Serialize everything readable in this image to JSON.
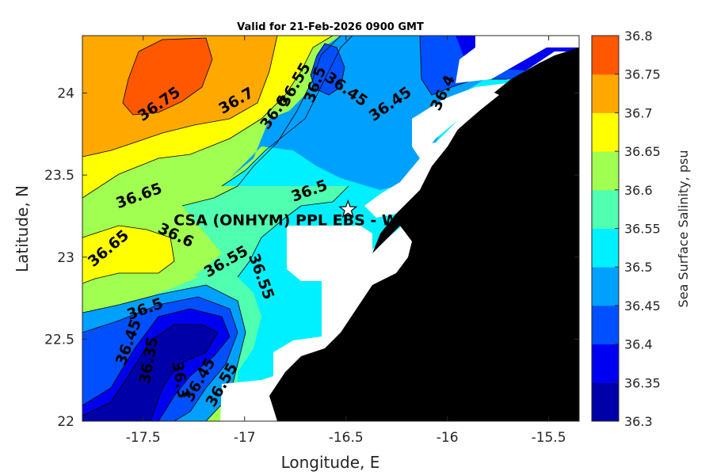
{
  "title": "Valid for 21-Feb-2026 0900 GMT",
  "xlabel": "Longitude, E",
  "ylabel": "Latitude, N",
  "colorbar_label": "Sea Surface Salinity, psu",
  "site_label": "CSA (ONHYM) PPL EBS  - We",
  "colors": {
    "land": "#000000",
    "nodata": "#ffffff",
    "levels": [
      "#0000a8",
      "#0000f0",
      "#0050ff",
      "#00a0ff",
      "#00f0ff",
      "#50ffb0",
      "#a0ff50",
      "#ffff00",
      "#ffa800",
      "#ff5800"
    ]
  },
  "chart_data": {
    "type": "contour_map",
    "title": "Valid for 21-Feb-2026 0900 GMT",
    "xlabel": "Longitude, E",
    "ylabel": "Latitude, N",
    "xlim": [
      -17.8,
      -15.35
    ],
    "ylim": [
      22.0,
      24.35
    ],
    "xticks": [
      "-17.5",
      "-17",
      "-16.5",
      "-16",
      "-15.5"
    ],
    "xtick_values": [
      -17.5,
      -17.0,
      -16.5,
      -16.0,
      -15.5
    ],
    "yticks": [
      "22",
      "22.5",
      "23",
      "23.5",
      "24"
    ],
    "ytick_values": [
      22.0,
      22.5,
      23.0,
      23.5,
      24.0
    ],
    "colorbar": {
      "label": "Sea Surface Salinity, psu",
      "levels": [
        36.3,
        36.35,
        36.4,
        36.45,
        36.5,
        36.55,
        36.6,
        36.65,
        36.7,
        36.75,
        36.8
      ],
      "tick_labels": [
        "36.3",
        "36.35",
        "36.4",
        "36.45",
        "36.5",
        "36.55",
        "36.6",
        "36.65",
        "36.7",
        "36.75",
        "36.8"
      ]
    },
    "site": {
      "label": "CSA (ONHYM) PPL EBS  - We",
      "lon": -16.49,
      "lat": 23.29
    },
    "contour_labels": [
      {
        "text": "36.75",
        "lon": -17.42,
        "lat": 23.93,
        "angle": -35
      },
      {
        "text": "36.7",
        "lon": -17.04,
        "lat": 23.95,
        "angle": -30
      },
      {
        "text": "36.6",
        "lon": -16.85,
        "lat": 23.88,
        "angle": -55
      },
      {
        "text": "36.55",
        "lon": -16.75,
        "lat": 24.05,
        "angle": -60
      },
      {
        "text": "36.5",
        "lon": -16.65,
        "lat": 24.05,
        "angle": -70
      },
      {
        "text": "36.45",
        "lon": -16.5,
        "lat": 24.02,
        "angle": 35
      },
      {
        "text": "36.45",
        "lon": -16.28,
        "lat": 23.93,
        "angle": -35
      },
      {
        "text": "36.4",
        "lon": -16.02,
        "lat": 24.0,
        "angle": -65
      },
      {
        "text": "36.65",
        "lon": -17.52,
        "lat": 23.37,
        "angle": -20
      },
      {
        "text": "36.5",
        "lon": -16.68,
        "lat": 23.4,
        "angle": -20
      },
      {
        "text": "36.6",
        "lon": -17.34,
        "lat": 23.13,
        "angle": 25
      },
      {
        "text": "36.65",
        "lon": -17.67,
        "lat": 23.05,
        "angle": -40
      },
      {
        "text": "36.55",
        "lon": -17.09,
        "lat": 22.97,
        "angle": -30
      },
      {
        "text": "36.55",
        "lon": -16.92,
        "lat": 22.88,
        "angle": 70
      },
      {
        "text": "36.5",
        "lon": -17.49,
        "lat": 22.68,
        "angle": -20
      },
      {
        "text": "36.45",
        "lon": -17.57,
        "lat": 22.48,
        "angle": -70
      },
      {
        "text": "36.35",
        "lon": -17.47,
        "lat": 22.37,
        "angle": -80
      },
      {
        "text": "36.45",
        "lon": -17.22,
        "lat": 22.25,
        "angle": -60
      },
      {
        "text": "36.55",
        "lon": -17.11,
        "lat": 22.22,
        "angle": -60
      },
      {
        "text": "36.3",
        "lon": -17.32,
        "lat": 22.25,
        "angle": 80
      }
    ]
  }
}
